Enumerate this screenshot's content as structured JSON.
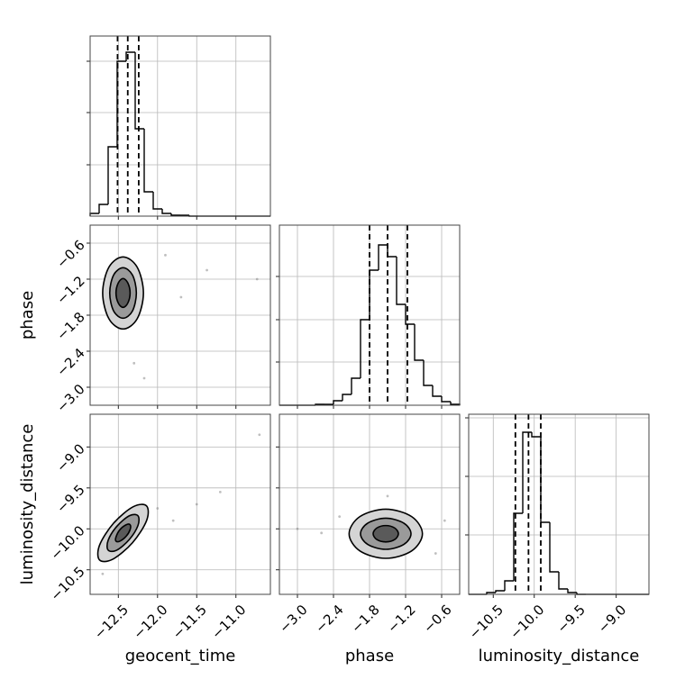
{
  "chart_data": {
    "type": "corner",
    "grid": true,
    "line_color": "#000000",
    "point_color": "#808080",
    "contour_fills": [
      "#d4d4d4",
      "#9a9a9a",
      "#5a5a5a"
    ],
    "parameters": [
      {
        "label": "geocent_time",
        "range": [
          -12.86,
          -10.56
        ],
        "ticks": [
          {
            "value": -12.5,
            "label": "−12.5"
          },
          {
            "value": -12.0,
            "label": "−12.0"
          },
          {
            "value": -11.5,
            "label": "−11.5"
          },
          {
            "value": -11.0,
            "label": "−11.0"
          }
        ]
      },
      {
        "label": "phase",
        "range": [
          -3.3,
          -0.3
        ],
        "ticks": [
          {
            "value": -3.0,
            "label": "−3.0"
          },
          {
            "value": -2.4,
            "label": "−2.4"
          },
          {
            "value": -1.8,
            "label": "−1.8"
          },
          {
            "value": -1.2,
            "label": "−1.2"
          },
          {
            "value": -0.6,
            "label": "−0.6"
          }
        ]
      },
      {
        "label": "luminosity_distance",
        "range": [
          -10.8,
          -8.6
        ],
        "ticks": [
          {
            "value": -10.5,
            "label": "−10.5"
          },
          {
            "value": -10.0,
            "label": "−10.0"
          },
          {
            "value": -9.5,
            "label": "−9.5"
          },
          {
            "value": -9.0,
            "label": "−9.0"
          }
        ]
      }
    ],
    "histograms": [
      {
        "bins": [
          -12.86,
          -12.745,
          -12.63,
          -12.515,
          -12.4,
          -12.285,
          -12.17,
          -12.055,
          -11.94,
          -11.825,
          -11.71,
          -11.595,
          -11.48,
          -11.365,
          -11.25,
          -11.135,
          -11.02,
          -10.905,
          -10.79,
          -10.675,
          -10.56
        ],
        "counts": [
          3,
          13,
          77,
          172,
          182,
          97,
          27,
          8,
          3,
          1,
          1,
          0,
          0,
          0,
          0,
          0,
          0,
          0,
          0,
          0
        ],
        "ylim": [
          0,
          200
        ],
        "yticks": [
          57,
          115,
          172
        ],
        "quantiles": [
          -12.51,
          -12.38,
          -12.24
        ]
      },
      {
        "bins": [
          -3.3,
          -3.15,
          -3.0,
          -2.85,
          -2.7,
          -2.55,
          -2.4,
          -2.25,
          -2.1,
          -1.95,
          -1.8,
          -1.65,
          -1.5,
          -1.35,
          -1.2,
          -1.05,
          -0.9,
          -0.75,
          -0.6,
          -0.45,
          -0.3
        ],
        "counts": [
          0,
          0,
          0,
          0,
          1,
          1,
          5,
          12,
          30,
          95,
          150,
          178,
          165,
          112,
          90,
          50,
          22,
          10,
          4,
          1
        ],
        "ylim": [
          0,
          200
        ],
        "yticks": [
          48,
          95,
          143
        ],
        "quantiles": [
          -1.8,
          -1.5,
          -1.17
        ]
      },
      {
        "bins": [
          -10.8,
          -10.69,
          -10.58,
          -10.47,
          -10.36,
          -10.25,
          -10.14,
          -10.03,
          -9.92,
          -9.81,
          -9.7,
          -9.59,
          -9.48,
          -9.37,
          -9.26,
          -9.15,
          -9.04,
          -8.93,
          -8.82,
          -8.71,
          -8.6
        ],
        "counts": [
          0,
          0,
          2,
          4,
          15,
          90,
          180,
          175,
          80,
          25,
          6,
          2,
          0,
          0,
          0,
          0,
          0,
          0,
          0,
          0
        ],
        "ylim": [
          0,
          200
        ],
        "yticks": [
          66,
          131,
          196
        ],
        "quantiles": [
          -10.23,
          -10.07,
          -9.92
        ]
      }
    ],
    "panels": [
      {
        "contours": [
          {
            "x": [
              -12.18,
              -12.26,
              -12.44,
              -12.62,
              -12.7,
              -12.62,
              -12.44,
              -12.26
            ],
            "y": [
              -1.43,
              -1.0,
              -0.83,
              -1.0,
              -1.43,
              -1.86,
              -2.03,
              -1.86
            ]
          },
          {
            "x": [
              -12.27,
              -12.32,
              -12.44,
              -12.56,
              -12.61,
              -12.56,
              -12.44,
              -12.32
            ],
            "y": [
              -1.43,
              -1.13,
              -1.01,
              -1.13,
              -1.43,
              -1.73,
              -1.85,
              -1.73
            ]
          },
          {
            "x": [
              -12.35,
              -12.38,
              -12.44,
              -12.5,
              -12.53,
              -12.5,
              -12.44,
              -12.38
            ],
            "y": [
              -1.43,
              -1.26,
              -1.19,
              -1.26,
              -1.43,
              -1.6,
              -1.67,
              -1.6
            ]
          }
        ],
        "points": {
          "x": [
            -11.37,
            -10.73,
            -12.17,
            -11.9,
            -12.3,
            -11.7
          ],
          "y": [
            -1.05,
            -1.2,
            -2.85,
            -0.8,
            -2.6,
            -1.5
          ]
        }
      },
      {
        "contours": [
          {
            "x": [
              -12.14,
              -12.14,
              -12.32,
              -12.57,
              -12.74,
              -12.74,
              -12.56,
              -12.31
            ],
            "y": [
              -9.72,
              -9.9,
              -10.17,
              -10.37,
              -10.38,
              -10.2,
              -9.93,
              -9.73
            ]
          },
          {
            "x": [
              -12.25,
              -12.25,
              -12.36,
              -12.52,
              -12.63,
              -12.63,
              -12.52,
              -12.36
            ],
            "y": [
              -9.84,
              -9.96,
              -10.13,
              -10.26,
              -10.26,
              -10.14,
              -9.97,
              -9.84
            ]
          },
          {
            "x": [
              -12.35,
              -12.35,
              -12.4,
              -12.48,
              -12.53,
              -12.53,
              -12.48,
              -12.4
            ],
            "y": [
              -9.95,
              -10.01,
              -10.09,
              -10.15,
              -10.15,
              -10.1,
              -10.01,
              -9.95
            ]
          }
        ],
        "points": {
          "x": [
            -11.5,
            -11.2,
            -10.7,
            -12.0,
            -11.8,
            -12.7
          ],
          "y": [
            -9.7,
            -9.55,
            -8.85,
            -9.75,
            -9.9,
            -10.55
          ]
        }
      },
      {
        "contours": [
          {
            "x": [
              -0.92,
              -1.1,
              -1.53,
              -1.96,
              -2.14,
              -1.96,
              -1.53,
              -1.1
            ],
            "y": [
              -10.06,
              -9.85,
              -9.76,
              -9.85,
              -10.06,
              -10.27,
              -10.36,
              -10.27
            ]
          },
          {
            "x": [
              -1.11,
              -1.23,
              -1.53,
              -1.83,
              -1.95,
              -1.83,
              -1.53,
              -1.23
            ],
            "y": [
              -10.06,
              -9.93,
              -9.87,
              -9.93,
              -10.06,
              -10.19,
              -10.25,
              -10.19
            ]
          },
          {
            "x": [
              -1.32,
              -1.38,
              -1.53,
              -1.68,
              -1.74,
              -1.68,
              -1.53,
              -1.38
            ],
            "y": [
              -10.06,
              -9.99,
              -9.96,
              -9.99,
              -10.06,
              -10.13,
              -10.16,
              -10.13
            ]
          }
        ],
        "points": {
          "x": [
            -3.0,
            -2.6,
            -0.55,
            -2.3,
            -0.7,
            -1.5
          ],
          "y": [
            -10.0,
            -10.05,
            -9.9,
            -9.85,
            -10.3,
            -9.6
          ]
        }
      }
    ]
  }
}
